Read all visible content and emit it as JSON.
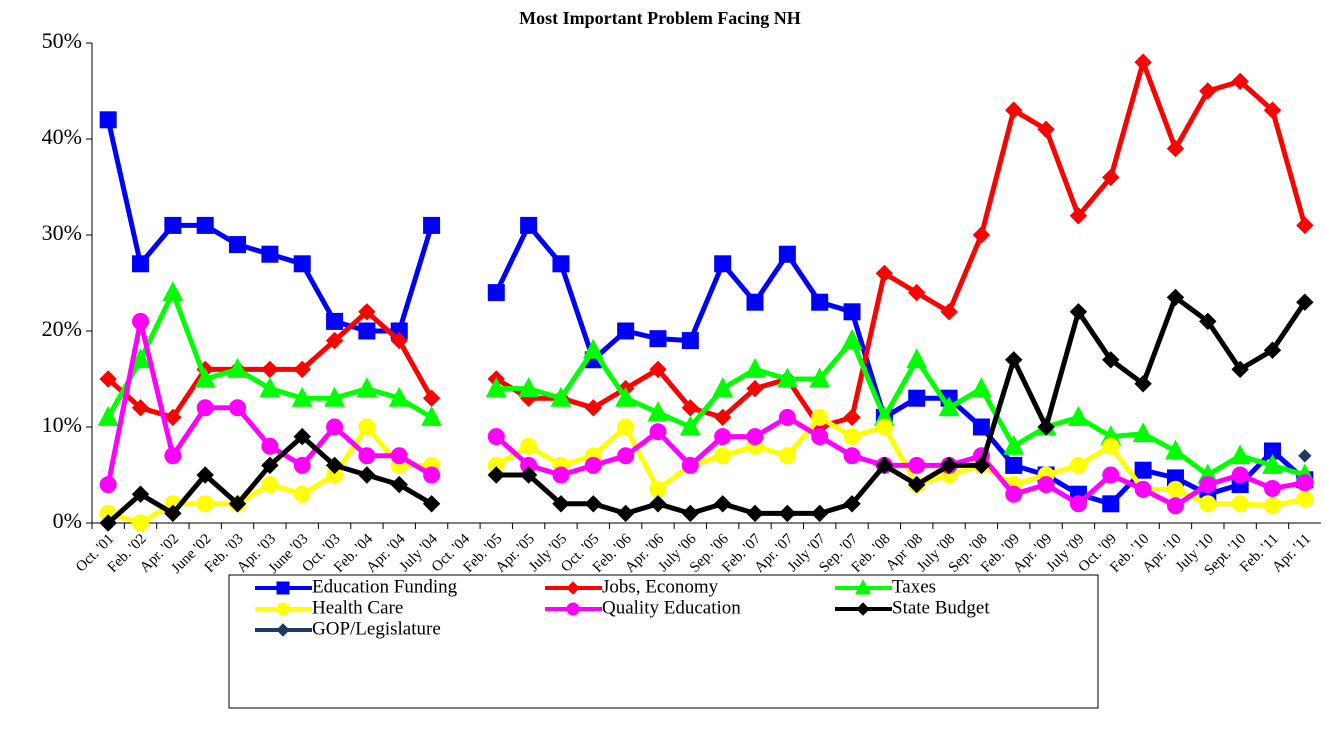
{
  "chart_data": {
    "type": "line",
    "title": "Most Important Problem Facing NH",
    "categories": [
      "Oct. '01",
      "Feb. '02",
      "Apr. '02",
      "June '02",
      "Feb. '03",
      "Apr. '03",
      "June '03",
      "Oct. '03",
      "Feb. '04",
      "Apr. '04",
      "July '04",
      "Oct. '04",
      "Feb. '05",
      "Apr. '05",
      "July '05",
      "Oct. '05",
      "Feb. '06",
      "Apr. '06",
      "July '06",
      "Sep. '06",
      "Feb. '07",
      "Apr. '07",
      "July '07",
      "Sep. '07",
      "Feb. '08",
      "Apr '08",
      "July '08",
      "Sep. '08",
      "Feb. '09",
      "Apr. '09",
      "July '09",
      "Oct. '09",
      "Feb. '10",
      "Apr. '10",
      "July '10",
      "Sept. '10",
      "Feb. '11",
      "Apr. '11"
    ],
    "series": [
      {
        "name": "Education Funding",
        "color": "#0000ff",
        "marker": "square",
        "values": [
          42,
          27,
          31,
          31,
          29,
          28,
          27,
          21,
          20,
          20,
          31,
          null,
          24,
          31,
          27,
          17,
          20,
          19.2,
          19,
          27,
          23,
          28,
          23,
          22,
          11,
          13,
          13,
          10,
          6,
          5,
          3,
          2,
          5.5,
          4.7,
          3,
          4,
          7.5,
          4.5
        ]
      },
      {
        "name": "Jobs, Economy",
        "color": "#ff0000",
        "marker": "diamond",
        "values": [
          15,
          12,
          11,
          16,
          16,
          16,
          16,
          19,
          22,
          19,
          13,
          null,
          15,
          13,
          13,
          12,
          14,
          16,
          12,
          11,
          14,
          15,
          10,
          11,
          26,
          24,
          22,
          30,
          43,
          41,
          32,
          36,
          48,
          39,
          45,
          46,
          43,
          31
        ]
      },
      {
        "name": "Taxes",
        "color": "#00ff00",
        "marker": "triangle",
        "values": [
          11,
          17,
          24,
          15,
          16,
          14,
          13,
          13,
          14,
          13,
          11,
          null,
          14,
          14,
          13,
          18,
          13,
          11.5,
          10,
          14,
          16,
          15,
          15,
          19,
          11,
          17,
          12,
          14,
          8,
          10,
          11,
          9,
          9.3,
          7.5,
          5,
          7,
          6,
          5
        ]
      },
      {
        "name": "Health Care",
        "color": "#ffff00",
        "marker": "circle",
        "values": [
          1,
          0,
          2,
          2,
          2,
          4,
          3,
          5,
          10,
          6,
          6,
          null,
          6,
          8,
          6,
          7,
          10,
          3.5,
          6,
          7,
          8,
          7,
          11,
          9,
          10,
          4,
          5,
          6,
          4,
          5,
          6,
          8,
          3.5,
          3.5,
          2,
          2,
          1.8,
          2.5
        ]
      },
      {
        "name": "Quality Education",
        "color": "#ff00ff",
        "marker": "circle",
        "values": [
          4,
          21,
          7,
          12,
          12,
          8,
          6,
          10,
          7,
          7,
          5,
          null,
          9,
          6,
          5,
          6,
          7,
          9.5,
          6,
          9,
          9,
          11,
          9,
          7,
          6,
          6,
          6,
          7,
          3,
          4,
          2,
          5,
          3.5,
          1.8,
          4,
          5,
          3.6,
          4.2
        ]
      },
      {
        "name": "State Budget",
        "color": "#000000",
        "marker": "diamond",
        "values": [
          0,
          3,
          1,
          5,
          2,
          6,
          9,
          6,
          5,
          4,
          2,
          null,
          5,
          5,
          2,
          2,
          1,
          2,
          1,
          2,
          1,
          1,
          1,
          2,
          6,
          4,
          6,
          6,
          17,
          10,
          22,
          17,
          14.5,
          23.5,
          21,
          16,
          18,
          23
        ]
      },
      {
        "name": "GOP/Legislature",
        "color": "#1f3b63",
        "marker": "diamond",
        "values": [
          null,
          null,
          null,
          null,
          null,
          null,
          null,
          null,
          null,
          null,
          null,
          null,
          null,
          null,
          null,
          null,
          null,
          null,
          null,
          null,
          null,
          null,
          null,
          null,
          null,
          null,
          null,
          null,
          null,
          null,
          null,
          null,
          null,
          null,
          null,
          null,
          null,
          7
        ]
      }
    ],
    "ylim": [
      0,
      50
    ],
    "yticks": [
      {
        "value": 0,
        "label": "0%"
      },
      {
        "value": 10,
        "label": "10%"
      },
      {
        "value": 20,
        "label": "20%"
      },
      {
        "value": 30,
        "label": "30%"
      },
      {
        "value": 40,
        "label": "40%"
      },
      {
        "value": 50,
        "label": "50%"
      }
    ],
    "legend": "bottom"
  }
}
